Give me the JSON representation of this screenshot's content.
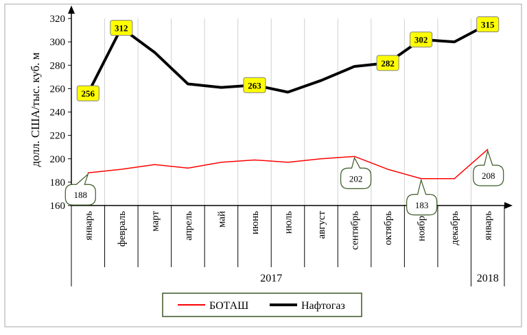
{
  "chart_data": {
    "type": "line",
    "ylabel": "долл. США/тыс. куб. м",
    "ylim": [
      160,
      320
    ],
    "yticks": [
      160,
      180,
      200,
      220,
      240,
      260,
      280,
      300,
      320
    ],
    "grid": "vertical",
    "legend_position": "bottom",
    "categories": [
      "январь",
      "февраль",
      "март",
      "апрель",
      "май",
      "июнь",
      "июль",
      "август",
      "сентябрь",
      "октябрь",
      "ноябрь",
      "декабрь",
      "январь"
    ],
    "year_groups": [
      {
        "label": "2017",
        "from": 0,
        "to": 11
      },
      {
        "label": "2018",
        "from": 12,
        "to": 12
      }
    ],
    "series": [
      {
        "name": "БОТАШ",
        "color": "#ff0000",
        "values": [
          188,
          191,
          195,
          192,
          197,
          199,
          197,
          200,
          202,
          191,
          183,
          183,
          208
        ],
        "labels": [
          {
            "index": 0,
            "text": "188"
          },
          {
            "index": 8,
            "text": "202"
          },
          {
            "index": 10,
            "text": "183"
          },
          {
            "index": 12,
            "text": "208"
          }
        ]
      },
      {
        "name": "Нафтогаз",
        "color": "#000000",
        "values": [
          256,
          312,
          291,
          264,
          261,
          263,
          257,
          267,
          279,
          282,
          302,
          300,
          315
        ],
        "labels": [
          {
            "index": 0,
            "text": "256"
          },
          {
            "index": 1,
            "text": "312"
          },
          {
            "index": 5,
            "text": "263"
          },
          {
            "index": 9,
            "text": "282"
          },
          {
            "index": 10,
            "text": "302"
          },
          {
            "index": 12,
            "text": "315"
          }
        ]
      }
    ]
  }
}
